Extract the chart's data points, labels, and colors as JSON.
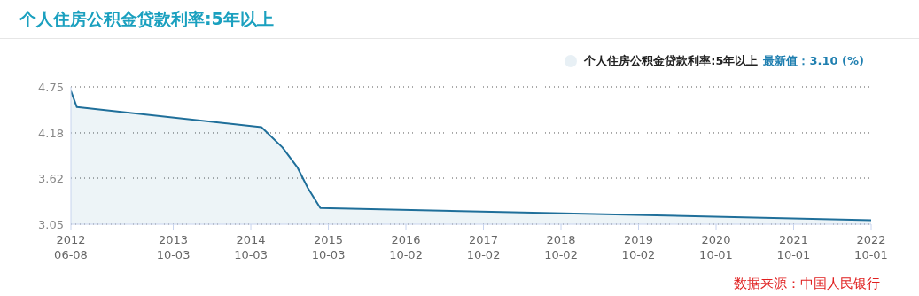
{
  "chart_data": {
    "type": "area",
    "title": "个人住房公积金贷款利率:5年以上",
    "x": [
      "2012-06-08",
      "2012-07-06",
      "2014-11-22",
      "2015-03-01",
      "2015-05-11",
      "2015-06-28",
      "2015-08-26",
      "2022-10-01"
    ],
    "series": [
      {
        "name": "个人住房公积金贷款利率:5年以上",
        "color": "#1f6f9a",
        "values": [
          4.7,
          4.5,
          4.25,
          4.0,
          3.75,
          3.5,
          3.25,
          3.1
        ]
      }
    ],
    "xlim": [
      "2012-06-08",
      "2022-10-01"
    ],
    "xticks": [
      {
        "value": "2012-06-08",
        "label": "2012\n06-08"
      },
      {
        "value": "2013-10-03",
        "label": "2013\n10-03"
      },
      {
        "value": "2014-10-03",
        "label": "2014\n10-03"
      },
      {
        "value": "2015-10-03",
        "label": "2015\n10-03"
      },
      {
        "value": "2016-10-02",
        "label": "2016\n10-02"
      },
      {
        "value": "2017-10-02",
        "label": "2017\n10-02"
      },
      {
        "value": "2018-10-02",
        "label": "2018\n10-02"
      },
      {
        "value": "2019-10-02",
        "label": "2019\n10-02"
      },
      {
        "value": "2020-10-01",
        "label": "2020\n10-01"
      },
      {
        "value": "2021-10-01",
        "label": "2021\n10-01"
      },
      {
        "value": "2022-10-01",
        "label": "2022\n10-01"
      }
    ],
    "ylim": [
      3.05,
      4.75
    ],
    "yticks": [
      3.05,
      3.62,
      4.18,
      4.75
    ],
    "grid": "y",
    "legend": "top right",
    "marker": "none",
    "line_style": "solid",
    "annotations": [
      "最新值：3.10 (%)",
      "数据来源：中国人民银行"
    ]
  }
}
